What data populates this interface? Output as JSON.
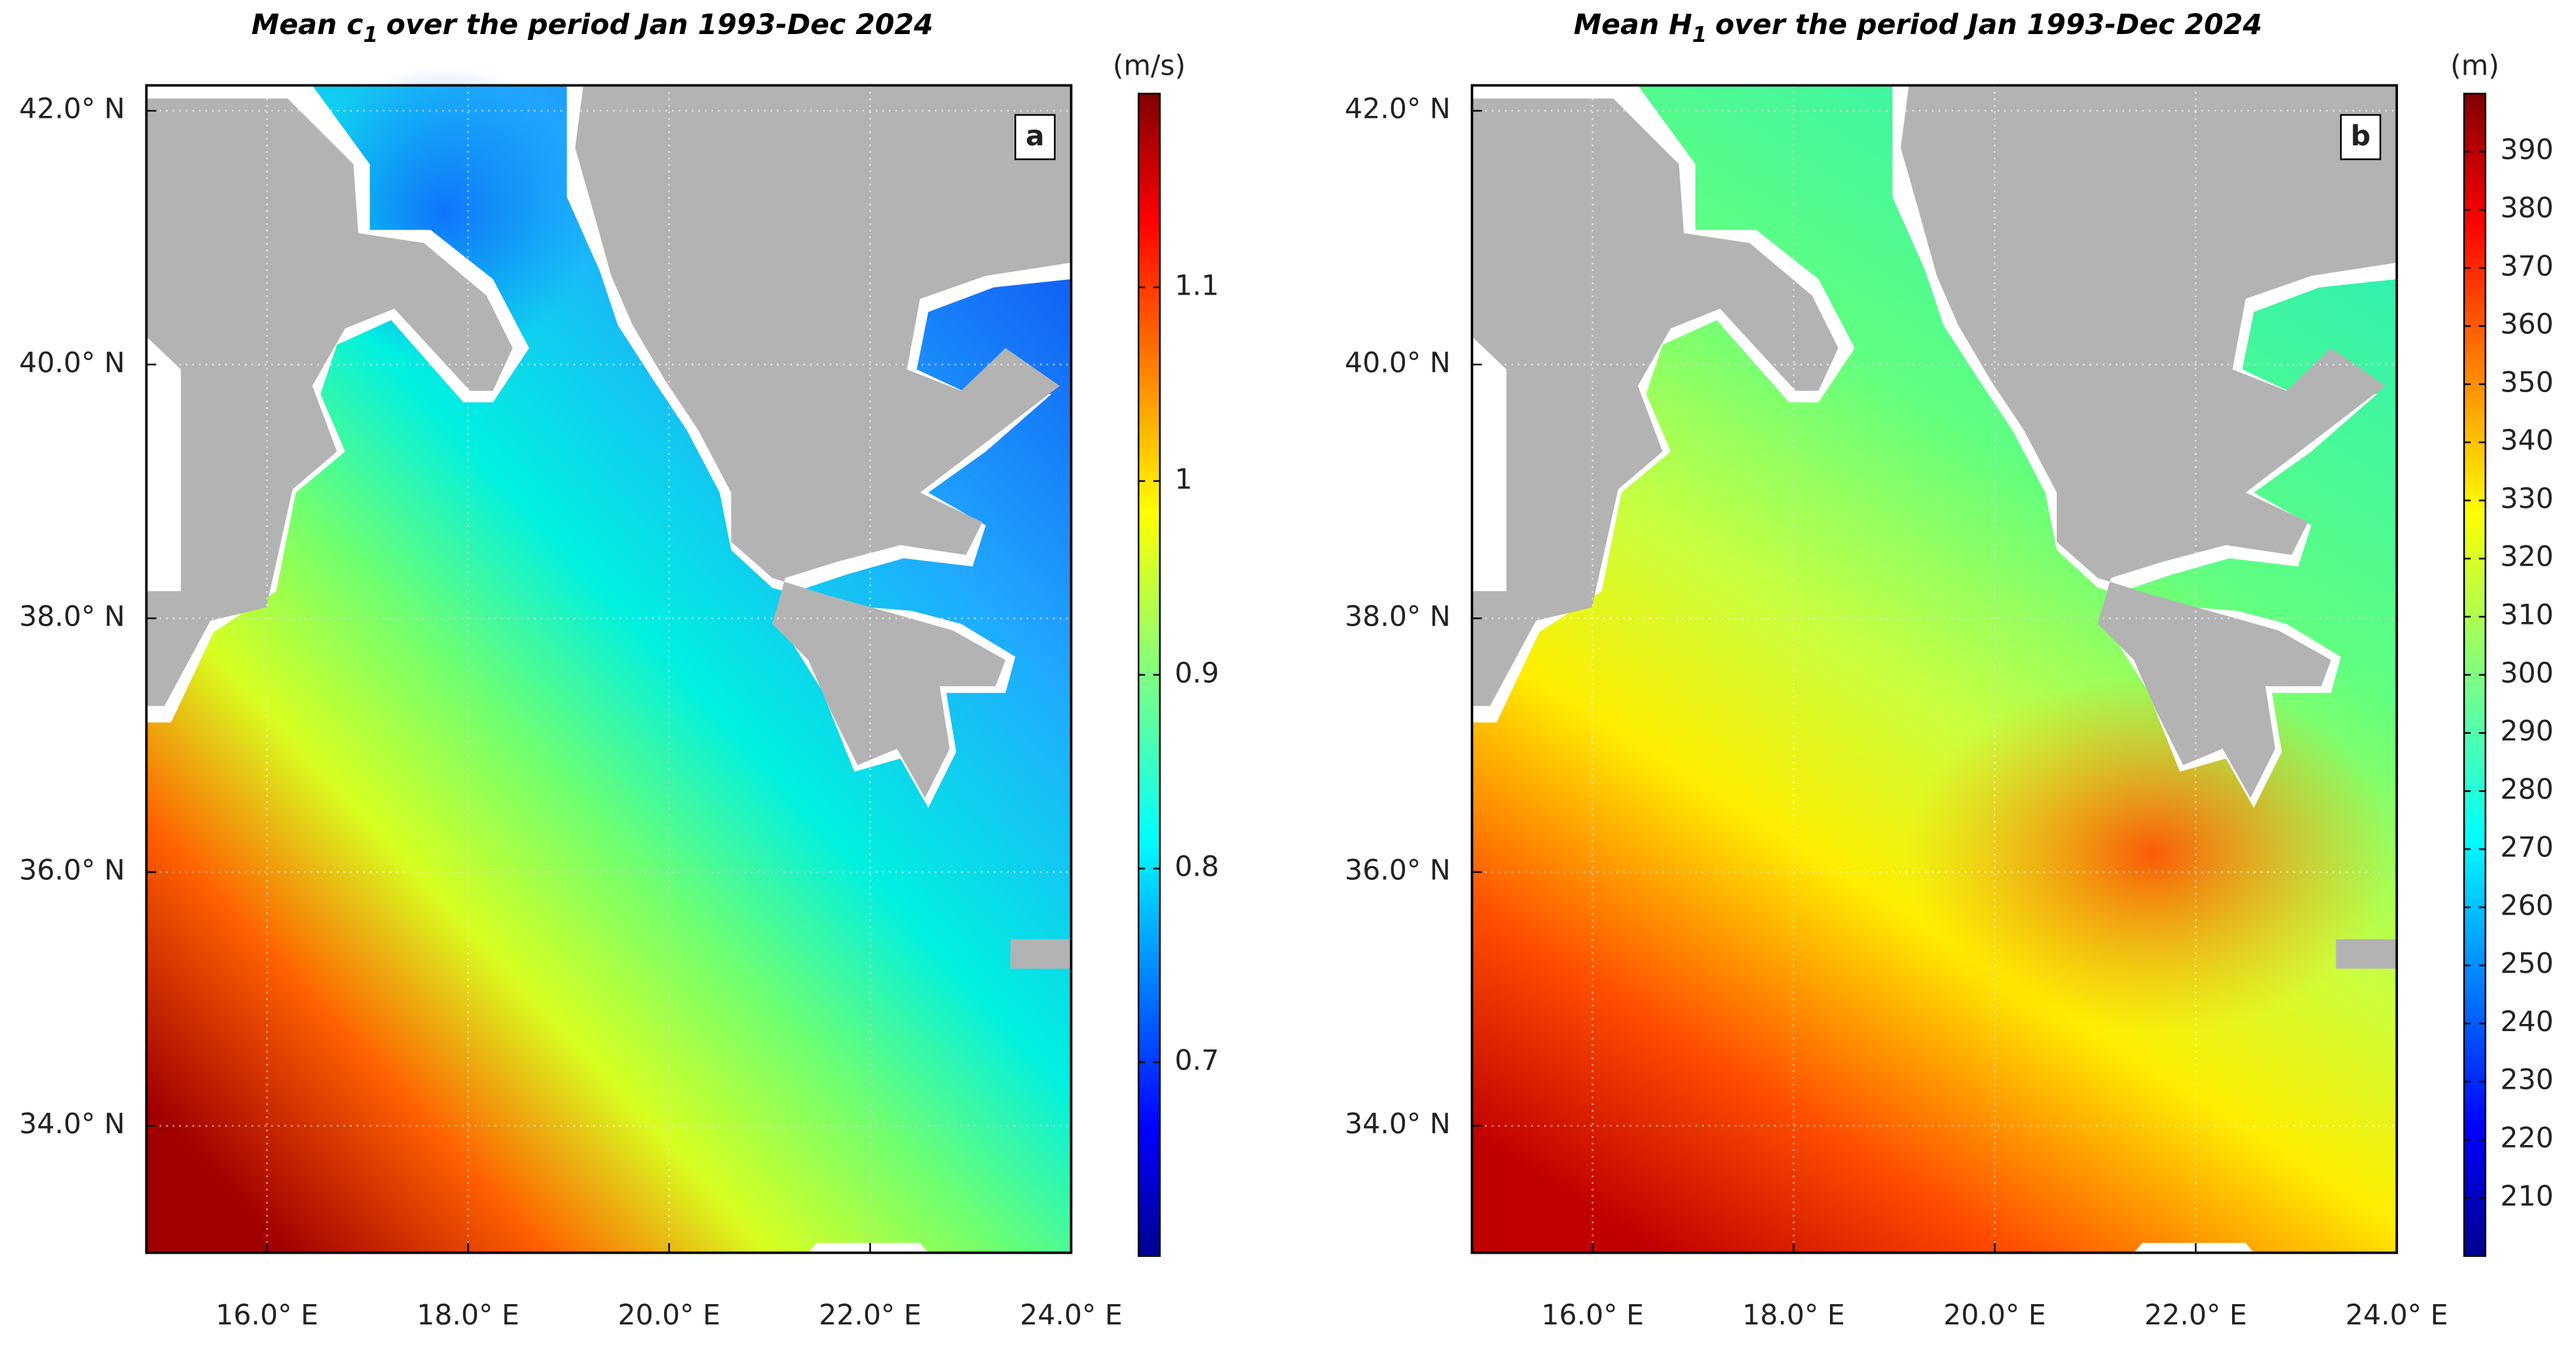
{
  "panels": [
    {
      "label": "a",
      "title": {
        "prefix": "Mean c",
        "subscript": "1",
        "suffix": "over the period Jan 1993-Dec 2024"
      },
      "unit": "(m/s)",
      "xlim": [
        14.8,
        24
      ],
      "ylim": [
        33,
        42.2
      ],
      "xticks": [
        {
          "value": 16,
          "label": "16.0° E"
        },
        {
          "value": 18,
          "label": "18.0° E"
        },
        {
          "value": 20,
          "label": "20.0° E"
        },
        {
          "value": 22,
          "label": "22.0° E"
        },
        {
          "value": 24,
          "label": "24.0° E"
        }
      ],
      "yticks": [
        {
          "value": 34,
          "label": "34.0° N"
        },
        {
          "value": 36,
          "label": "36.0° N"
        },
        {
          "value": 38,
          "label": "38.0° N"
        },
        {
          "value": 40,
          "label": "40.0° N"
        },
        {
          "value": 42,
          "label": "42.0° N"
        }
      ],
      "clim": [
        0.6,
        1.2
      ],
      "cticks": [
        0.7,
        0.8,
        0.9,
        1,
        1.1
      ]
    },
    {
      "label": "b",
      "title": {
        "prefix": "Mean H",
        "subscript": "1",
        "suffix": "over the period Jan 1993-Dec 2024"
      },
      "unit": "(m)",
      "xlim": [
        14.8,
        24
      ],
      "ylim": [
        33,
        42.2
      ],
      "xticks": [
        {
          "value": 16,
          "label": "16.0° E"
        },
        {
          "value": 18,
          "label": "18.0° E"
        },
        {
          "value": 20,
          "label": "20.0° E"
        },
        {
          "value": 22,
          "label": "22.0° E"
        },
        {
          "value": 24,
          "label": "24.0° E"
        }
      ],
      "yticks": [
        {
          "value": 34,
          "label": "34.0° N"
        },
        {
          "value": 36,
          "label": "36.0° N"
        },
        {
          "value": 38,
          "label": "38.0° N"
        },
        {
          "value": 40,
          "label": "40.0° N"
        },
        {
          "value": 42,
          "label": "42.0° N"
        }
      ],
      "clim": [
        200,
        400
      ],
      "cticks": [
        210,
        220,
        230,
        240,
        250,
        260,
        270,
        280,
        290,
        300,
        310,
        320,
        330,
        340,
        350,
        360,
        370,
        380,
        390
      ]
    }
  ]
}
